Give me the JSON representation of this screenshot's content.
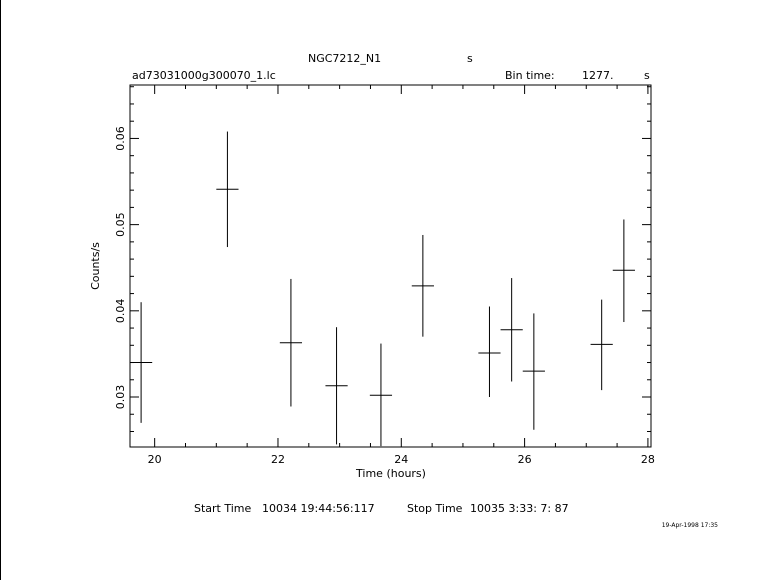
{
  "header": {
    "object": "NGC7212_N1",
    "object_unit": "s",
    "file": "ad73031000g300070_1.lc",
    "bin_label": "Bin time:",
    "bin_value": "1277.",
    "bin_unit": "s"
  },
  "footer": {
    "start_label": "Start Time",
    "start_value": "10034  19:44:56:117",
    "stop_label": "Stop Time",
    "stop_value": "10035   3:33:  7:  87",
    "timestamp": "19-Apr-1998 17:35"
  },
  "chart_data": {
    "type": "scatter",
    "xlabel": "Time (hours)",
    "ylabel": "Counts/s",
    "xlim": [
      19.6,
      28.05
    ],
    "ylim": [
      0.0242,
      0.0662
    ],
    "xticks_major": [
      20,
      22,
      24,
      26,
      28
    ],
    "xticks_minor_step": 0.5,
    "yticks_major": [
      0.03,
      0.04,
      0.05,
      0.06
    ],
    "yticks_minor_step": 0.002,
    "x_tick_labels": [
      "20",
      "22",
      "24",
      "26",
      "28"
    ],
    "y_tick_labels": [
      "0.03",
      "0.04",
      "0.05",
      "0.06"
    ],
    "points": [
      {
        "x": 19.78,
        "xerr": 0.18,
        "y": 0.034,
        "ylo": 0.027,
        "yhi": 0.041
      },
      {
        "x": 21.18,
        "xerr": 0.18,
        "y": 0.0541,
        "ylo": 0.0474,
        "yhi": 0.0608
      },
      {
        "x": 22.21,
        "xerr": 0.18,
        "y": 0.0363,
        "ylo": 0.0289,
        "yhi": 0.0437
      },
      {
        "x": 22.95,
        "xerr": 0.18,
        "y": 0.0313,
        "ylo": 0.0245,
        "yhi": 0.0381
      },
      {
        "x": 23.67,
        "xerr": 0.18,
        "y": 0.0302,
        "ylo": 0.0243,
        "yhi": 0.0362
      },
      {
        "x": 24.35,
        "xerr": 0.18,
        "y": 0.0429,
        "ylo": 0.037,
        "yhi": 0.0488
      },
      {
        "x": 25.43,
        "xerr": 0.18,
        "y": 0.0351,
        "ylo": 0.03,
        "yhi": 0.0405
      },
      {
        "x": 25.79,
        "xerr": 0.18,
        "y": 0.0378,
        "ylo": 0.0318,
        "yhi": 0.0438
      },
      {
        "x": 26.15,
        "xerr": 0.18,
        "y": 0.033,
        "ylo": 0.0262,
        "yhi": 0.0397
      },
      {
        "x": 27.25,
        "xerr": 0.18,
        "y": 0.0361,
        "ylo": 0.0308,
        "yhi": 0.0413
      },
      {
        "x": 27.61,
        "xerr": 0.18,
        "y": 0.0447,
        "ylo": 0.0387,
        "yhi": 0.0506
      }
    ]
  }
}
